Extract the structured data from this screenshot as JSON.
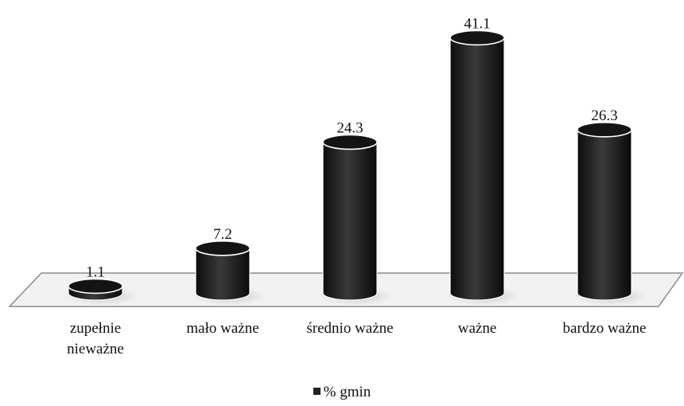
{
  "chart_data": {
    "type": "bar",
    "style": "3d-cylinder",
    "categories": [
      "zupełnie\nnieważne",
      "mało ważne",
      "średnio ważne",
      "ważne",
      "bardzo ważne"
    ],
    "series": [
      {
        "name": "% gmin",
        "values": [
          1.1,
          7.2,
          24.3,
          41.1,
          26.3
        ]
      }
    ],
    "data_labels": [
      "1.1",
      "7.2",
      "24.3",
      "41.1",
      "26.3"
    ],
    "title": "",
    "xlabel": "",
    "ylabel": "",
    "ylim": [
      0,
      45
    ],
    "grid": false,
    "legend_position": "bottom",
    "colors": {
      "bar": "#222222",
      "floor_fill": "#f2f2f2",
      "floor_stroke": "#888888"
    }
  },
  "legend": {
    "label": "% gmin"
  }
}
